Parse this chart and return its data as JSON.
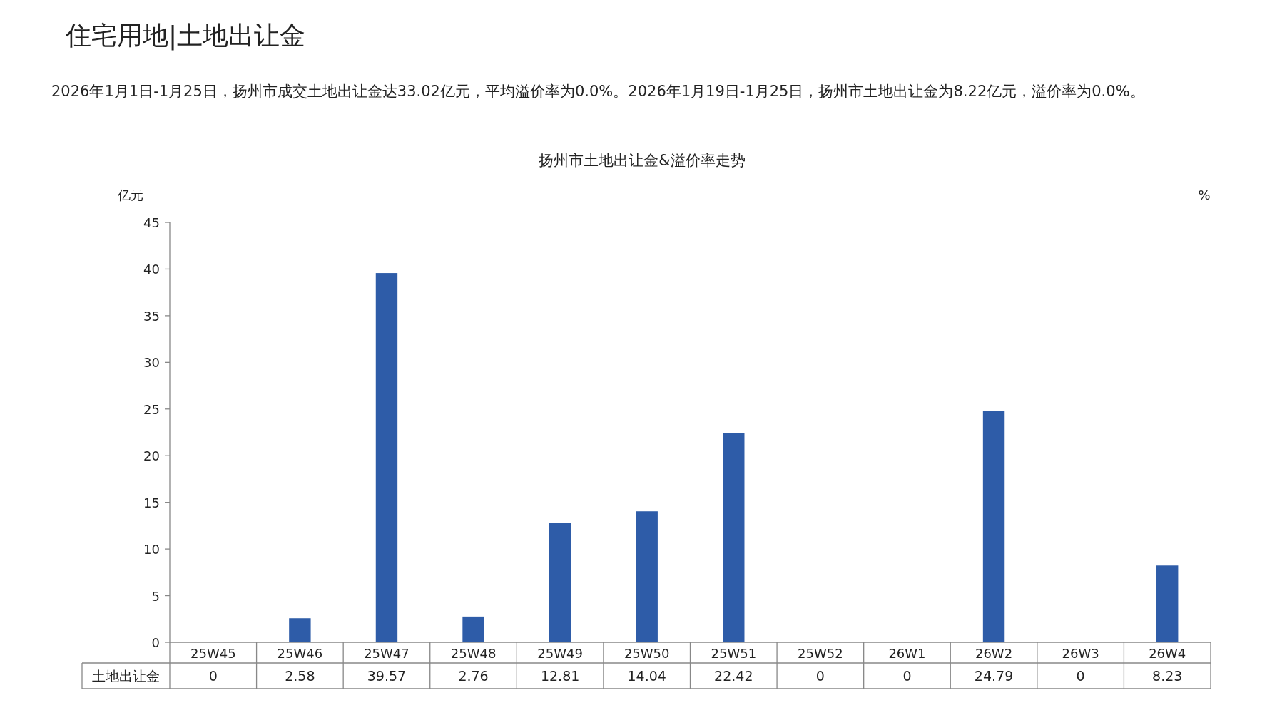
{
  "chart_data": {
    "type": "bar",
    "title": "住宅用地|土地出让金",
    "subtitle": "2026年1月1日-1月25日，扬州市成交土地出让金达33.02亿元，平均溢价率为0.0%。2026年1月19日-1月25日，扬州市土地出让金为8.22亿元，溢价率为0.0%。",
    "annotations": [
      "扬州市土地出让金&溢价率走势"
    ],
    "ylabel": "亿元",
    "y2label": "%",
    "categories": [
      "25W45",
      "25W46",
      "25W47",
      "25W48",
      "25W49",
      "25W50",
      "25W51",
      "25W52",
      "26W1",
      "26W2",
      "26W3",
      "26W4"
    ],
    "series": [
      {
        "name": "土地出让金",
        "color": "#2e5ca8",
        "values": [
          0,
          2.58,
          39.57,
          2.76,
          12.81,
          14.04,
          22.42,
          0,
          0,
          24.79,
          0,
          8.23
        ]
      }
    ],
    "ylim": [
      0,
      45
    ],
    "yticks": [
      0,
      5,
      10,
      15,
      20,
      25,
      30,
      35,
      40,
      45
    ],
    "data_labels": true
  }
}
